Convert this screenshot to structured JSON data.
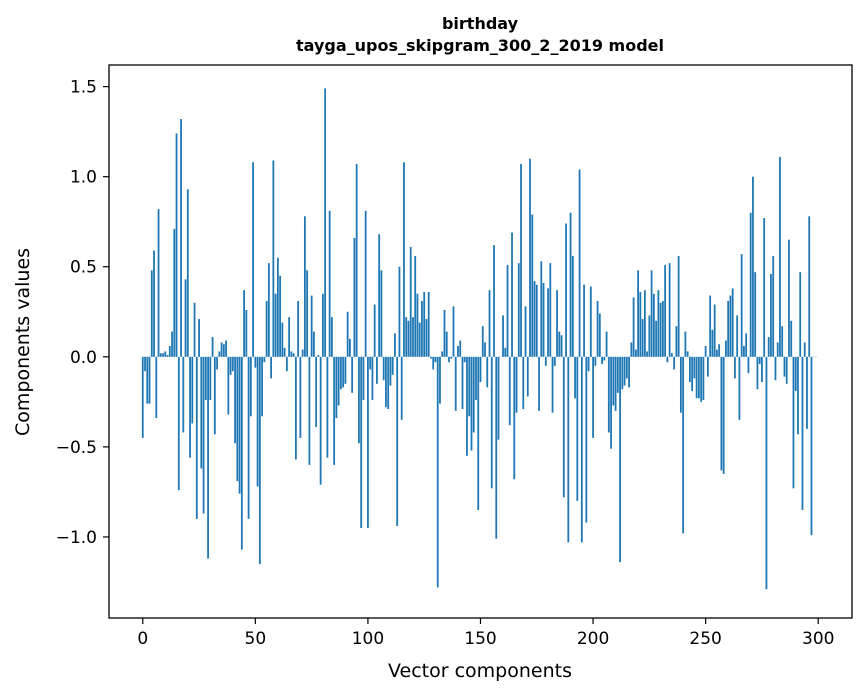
{
  "chart_data": {
    "type": "bar",
    "title": "birthday",
    "subtitle": "tayga_upos_skipgram_300_2_2019 model",
    "xlabel": "Vector components",
    "ylabel": "Components values",
    "xlim": [
      -15,
      315
    ],
    "ylim": [
      -1.45,
      1.62
    ],
    "xticks": [
      0,
      50,
      100,
      150,
      200,
      250,
      300
    ],
    "xtick_labels": [
      "0",
      "50",
      "100",
      "150",
      "200",
      "250",
      "300"
    ],
    "yticks": [
      -1.0,
      -0.5,
      0.0,
      0.5,
      1.0,
      1.5
    ],
    "ytick_labels": [
      "−1.0",
      "−0.5",
      "0.0",
      "0.5",
      "1.0",
      "1.5"
    ],
    "grid": false,
    "bar_color": "#1f77b4",
    "x_start": 0,
    "values": [
      -0.45,
      -0.08,
      -0.26,
      -0.26,
      0.48,
      0.59,
      -0.34,
      0.82,
      0.02,
      0.02,
      0.03,
      0.01,
      0.06,
      0.14,
      0.71,
      1.24,
      -0.74,
      1.32,
      -0.42,
      0.43,
      0.93,
      -0.56,
      -0.37,
      0.3,
      -0.9,
      0.21,
      -0.62,
      -0.87,
      -0.24,
      -1.12,
      -0.24,
      0.11,
      -0.43,
      -0.07,
      0.03,
      0.08,
      0.07,
      0.09,
      -0.32,
      -0.1,
      -0.08,
      -0.48,
      -0.69,
      -0.76,
      -1.07,
      0.37,
      0.26,
      -0.9,
      -0.33,
      1.08,
      -0.06,
      -0.72,
      -1.15,
      -0.33,
      -0.03,
      0.31,
      0.52,
      -0.12,
      1.09,
      0.35,
      0.55,
      0.45,
      0.19,
      0.05,
      -0.08,
      0.22,
      0.03,
      0.02,
      -0.57,
      0.31,
      -0.45,
      0.04,
      0.78,
      0.48,
      -0.6,
      0.34,
      0.14,
      -0.39,
      0.01,
      -0.71,
      0.35,
      1.49,
      -0.56,
      0.81,
      0.22,
      -0.6,
      -0.34,
      -0.27,
      -0.18,
      -0.17,
      -0.15,
      0.25,
      0.1,
      -0.2,
      0.66,
      1.07,
      -0.48,
      -0.95,
      -0.24,
      0.81,
      -0.95,
      -0.07,
      -0.24,
      0.29,
      -0.15,
      0.68,
      0.48,
      -0.13,
      -0.28,
      -0.29,
      -0.16,
      -0.1,
      0.13,
      -0.94,
      0.5,
      -0.35,
      1.08,
      0.22,
      0.2,
      0.61,
      0.22,
      0.56,
      0.35,
      0.19,
      0.31,
      0.36,
      0.21,
      0.36,
      -0.01,
      -0.07,
      -0.03,
      -1.28,
      -0.26,
      0.03,
      0.26,
      0.14,
      -0.03,
      -0.01,
      0.28,
      -0.3,
      0.06,
      0.09,
      -0.29,
      -0.03,
      -0.55,
      -0.33,
      -0.52,
      -0.42,
      -0.24,
      -0.85,
      -0.14,
      0.17,
      0.08,
      -0.17,
      0.37,
      -0.73,
      0.62,
      -1.01,
      -0.46,
      0.0,
      0.23,
      0.05,
      0.51,
      -0.38,
      0.69,
      -0.68,
      -0.31,
      0.52,
      1.07,
      -0.29,
      0.28,
      -0.22,
      1.1,
      0.79,
      0.42,
      0.4,
      -0.3,
      0.53,
      0.41,
      -0.05,
      0.38,
      0.52,
      -0.31,
      -0.05,
      0.37,
      0.14,
      0.12,
      -0.78,
      0.74,
      -1.03,
      0.8,
      0.56,
      -0.23,
      -0.8,
      1.04,
      -1.03,
      0.4,
      -0.92,
      -0.08,
      0.39,
      -0.45,
      -0.05,
      0.31,
      0.24,
      -0.04,
      -0.02,
      0.14,
      -0.42,
      -0.51,
      -0.27,
      -0.3,
      -0.2,
      -1.14,
      -0.18,
      -0.16,
      -0.12,
      -0.17,
      0.08,
      0.33,
      0.04,
      0.48,
      0.36,
      0.21,
      0.37,
      0.03,
      0.23,
      0.48,
      0.35,
      0.2,
      0.37,
      0.3,
      0.31,
      0.51,
      -0.03,
      0.52,
      0.02,
      -0.07,
      0.17,
      0.56,
      -0.31,
      -0.98,
      0.14,
      0.03,
      -0.14,
      -0.19,
      -0.12,
      -0.23,
      -0.23,
      -0.25,
      -0.24,
      0.06,
      -0.11,
      0.34,
      0.15,
      0.29,
      0.04,
      0.07,
      -0.63,
      -0.65,
      0.09,
      0.31,
      0.34,
      0.38,
      -0.12,
      0.23,
      -0.35,
      0.57,
      0.06,
      0.13,
      -0.09,
      0.8,
      1.0,
      0.47,
      -0.18,
      -0.04,
      -0.14,
      0.77,
      -1.29,
      0.11,
      0.46,
      0.56,
      -0.13,
      0.08,
      1.11,
      0.17,
      -0.11,
      -0.15,
      0.65,
      0.2,
      -0.73,
      -0.19,
      -0.43,
      0.47,
      -0.85,
      0.08,
      -0.4,
      0.78,
      -0.99,
      0.0,
      0.0
    ]
  }
}
